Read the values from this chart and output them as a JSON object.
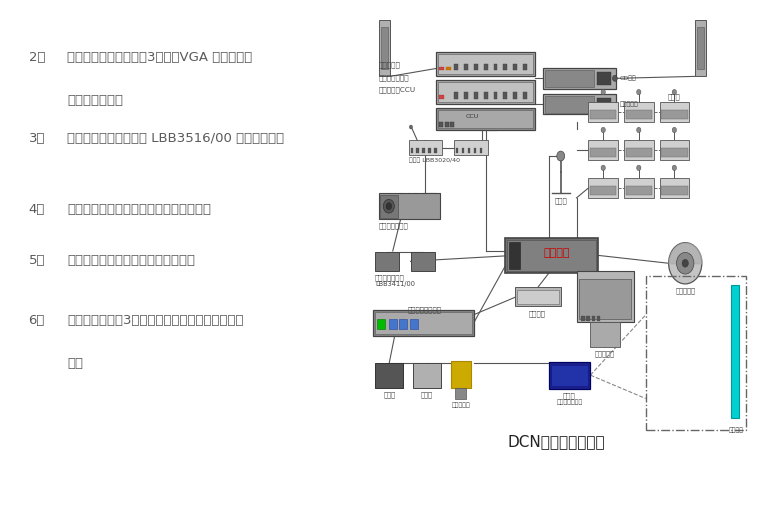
{
  "bg_color": "#ffffff",
  "left_text_color": "#5a5a5a",
  "diagram_title": "DCN会议管理系统图",
  "items": [
    {
      "num": "2、",
      "text_lines": [
        "实物投影仪到控制台有3根线：VGA 信号线、电",
        "话线、电源线。"
      ]
    },
    {
      "num": "3、",
      "text_lines": [
        "会议系统到控制台两根 LBB3516/00 的信号控制线"
      ]
    },
    {
      "num": "4、",
      "text_lines": [
        "电动投影幕到控制台一根电源线（三芯）"
      ]
    },
    {
      "num": "5、",
      "text_lines": [
        "所有音筱到控制台各一根音响专用线"
      ]
    },
    {
      "num": "6、",
      "text_lines": [
        "摄象机到控制台3根线：电源线、键盘控制线、视",
        "频线"
      ]
    }
  ],
  "label_amplifier": "接力放大器",
  "label_audio_if": "音频数制接口器",
  "label_ccu": "中央控连器CCU",
  "label_cd": "CD播机",
  "label_tape": "卡式录放机",
  "label_speaker": "扩声器",
  "label_mic_main": "主席机",
  "label_ir_tx": "红外线发送批机",
  "label_ir_rx": "红外线接收身板",
  "label_ir_rx2": "LBB3411/00",
  "label_translator": "话筒机 LBB3020/40",
  "label_main_host": "控车主机",
  "label_hdd": "主控硬盘",
  "label_monitor": "彩色监视机",
  "label_switcher": "全视频切换服务器",
  "label_projector": "投像机",
  "label_recorder": "录播机",
  "label_vdisp": "视频显示台",
  "label_ctrl_cam": "控像机",
  "label_lcd_sys": "液晶投像仪系统",
  "label_ptz": "一体化球机",
  "label_screen": "电动幕屏"
}
